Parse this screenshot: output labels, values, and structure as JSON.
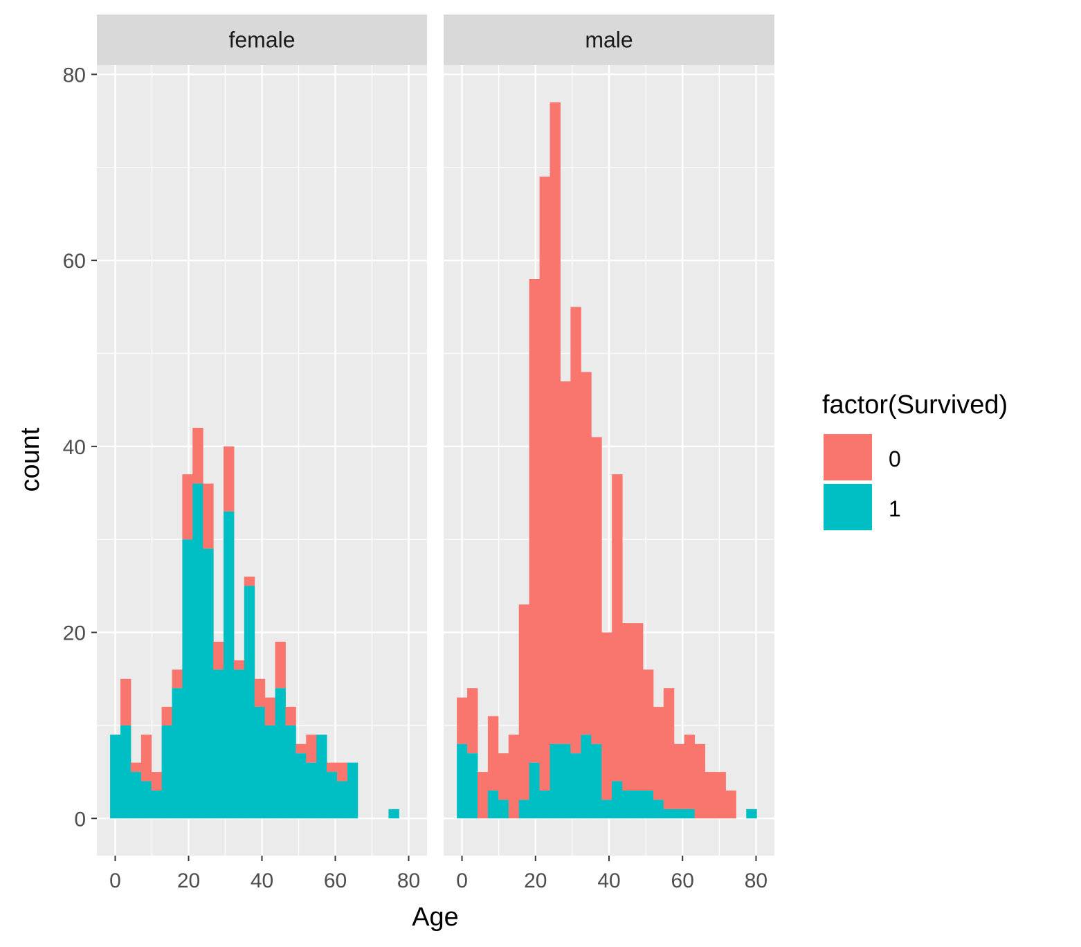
{
  "chart_data": {
    "type": "bar",
    "subtype": "stacked-histogram",
    "xlabel": "Age",
    "ylabel": "count",
    "xlim": [
      -5,
      85
    ],
    "ylim": [
      -4,
      81
    ],
    "x_ticks": [
      0,
      20,
      40,
      60,
      80
    ],
    "y_ticks": [
      0,
      20,
      40,
      60,
      80
    ],
    "bin_width": 2.81,
    "grid": true,
    "legend": {
      "title": "factor(Survived)",
      "placement": "right",
      "entries": [
        {
          "label": "0",
          "color": "#F8766D"
        },
        {
          "label": "1",
          "color": "#00BFC4"
        }
      ]
    },
    "colors": {
      "panel_bg": "#EBEBEB",
      "strip_bg": "#D9D9D9",
      "grid": "#FFFFFF",
      "survived_0": "#F8766D",
      "survived_1": "#00BFC4"
    },
    "panels": [
      {
        "strip": "female",
        "bin_starts": [
          -1.4,
          1.41,
          4.22,
          7.04,
          9.85,
          12.66,
          15.47,
          18.28,
          21.09,
          23.91,
          26.72,
          29.53,
          32.34,
          35.15,
          37.97,
          40.78,
          43.59,
          46.4,
          49.21,
          52.03,
          54.84,
          57.65,
          60.46,
          63.27,
          66.08,
          68.9,
          71.71,
          74.52,
          77.33
        ],
        "series": [
          {
            "name": "0",
            "values": [
              9,
              15,
              6,
              9,
              5,
              12,
              16,
              37,
              42,
              36,
              19,
              40,
              17,
              26,
              15,
              13,
              19,
              12,
              8,
              9,
              6,
              6,
              6,
              0,
              0,
              0,
              0,
              1,
              0
            ]
          },
          {
            "name": "1",
            "values": [
              9,
              10,
              5,
              4,
              3,
              10,
              14,
              30,
              36,
              29,
              16,
              33,
              16,
              25,
              12,
              10,
              14,
              10,
              7,
              6,
              9,
              5,
              4,
              6,
              0,
              0,
              0,
              1,
              0
            ]
          }
        ]
      },
      {
        "strip": "male",
        "bin_starts": [
          -1.4,
          1.41,
          4.22,
          7.04,
          9.85,
          12.66,
          15.47,
          18.28,
          21.09,
          23.91,
          26.72,
          29.53,
          32.34,
          35.15,
          37.97,
          40.78,
          43.59,
          46.4,
          49.21,
          52.03,
          54.84,
          57.65,
          60.46,
          63.27,
          66.08,
          68.9,
          71.71,
          74.52,
          77.33
        ],
        "series": [
          {
            "name": "0",
            "values": [
              13,
              14,
              5,
              11,
              7,
              9,
              23,
              58,
              69,
              77,
              47,
              55,
              48,
              41,
              20,
              37,
              21,
              21,
              16,
              12,
              14,
              8,
              9,
              8,
              5,
              5,
              3,
              0,
              0
            ]
          },
          {
            "name": "1",
            "values": [
              8,
              7,
              0,
              3,
              2,
              0,
              2,
              6,
              3,
              8,
              8,
              7,
              9,
              8,
              2,
              4,
              3,
              3,
              3,
              2,
              1,
              1,
              1,
              0,
              0,
              0,
              0,
              0,
              1
            ]
          }
        ]
      }
    ]
  }
}
